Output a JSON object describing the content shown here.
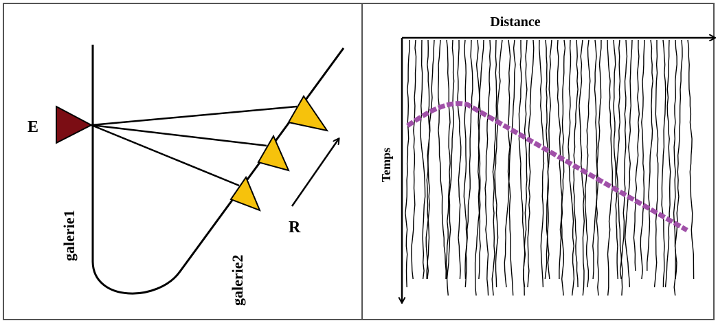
{
  "left_panel": {
    "emitter": "E",
    "gallery1": "galerie1",
    "gallery2": "galerie2",
    "range": "R"
  },
  "right_panel": {
    "x_axis_label": "Distance",
    "y_axis_label": "Temps"
  }
}
